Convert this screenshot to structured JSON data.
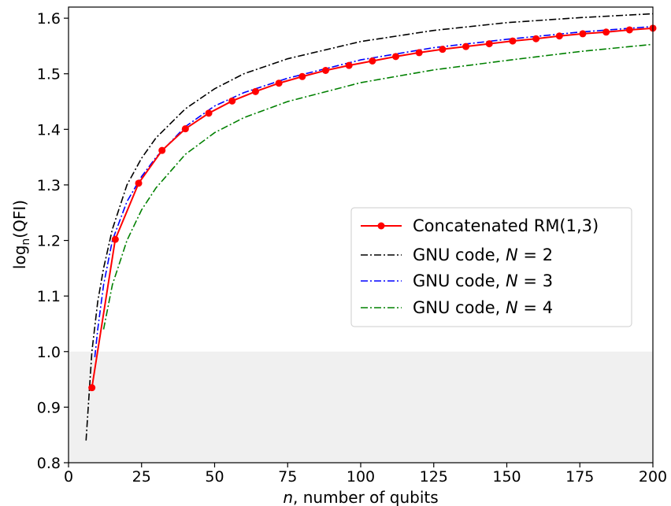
{
  "chart_data": {
    "type": "line",
    "title": "",
    "xlabel": {
      "italic": "n",
      "rest": ", number of qubits"
    },
    "ylabel": {
      "base": "log",
      "sub": "n",
      "rest": "(QFI)"
    },
    "xlim": [
      0,
      200
    ],
    "ylim": [
      0.8,
      1.62
    ],
    "x_ticks": [
      0,
      25,
      50,
      75,
      100,
      125,
      150,
      175,
      200
    ],
    "y_ticks": [
      0.8,
      0.9,
      1.0,
      1.1,
      1.2,
      1.3,
      1.4,
      1.5,
      1.6
    ],
    "x_tick_labels": [
      "0",
      "25",
      "50",
      "75",
      "100",
      "125",
      "150",
      "175",
      "200"
    ],
    "y_tick_labels": [
      "0.8",
      "0.9",
      "1.0",
      "1.1",
      "1.2",
      "1.3",
      "1.4",
      "1.5",
      "1.6"
    ],
    "shaded_region": {
      "y_from": 0.8,
      "y_to": 1.0,
      "color": "#f0f0f0"
    },
    "grid": false,
    "legend_position": "center-right",
    "series": [
      {
        "name": "Concatenated RM(1,3)",
        "legend": {
          "text": "Concatenated RM(1,3)"
        },
        "color": "#ff0000",
        "style": "solid-marker",
        "x": [
          8,
          16,
          24,
          32,
          40,
          48,
          56,
          64,
          72,
          80,
          88,
          96,
          104,
          112,
          120,
          128,
          136,
          144,
          152,
          160,
          168,
          176,
          184,
          192,
          200
        ],
        "y": [
          0.935,
          1.202,
          1.303,
          1.362,
          1.401,
          1.429,
          1.451,
          1.468,
          1.483,
          1.495,
          1.506,
          1.515,
          1.523,
          1.531,
          1.538,
          1.544,
          1.549,
          1.554,
          1.559,
          1.563,
          1.568,
          1.572,
          1.575,
          1.579,
          1.582
        ]
      },
      {
        "name": "GNU code, N = 2",
        "legend": {
          "prefix": "GNU code, ",
          "var": "N",
          "suffix": " = 2"
        },
        "color": "#000000",
        "style": "dashdot",
        "x": [
          6,
          8,
          10,
          12,
          15,
          20,
          25,
          30,
          40,
          50,
          60,
          75,
          100,
          125,
          150,
          175,
          200
        ],
        "y": [
          0.84,
          1.0,
          1.09,
          1.15,
          1.22,
          1.3,
          1.348,
          1.385,
          1.437,
          1.473,
          1.5,
          1.527,
          1.558,
          1.578,
          1.592,
          1.601,
          1.608
        ]
      },
      {
        "name": "GNU code, N = 3",
        "legend": {
          "prefix": "GNU code, ",
          "var": "N",
          "suffix": " = 3"
        },
        "color": "#0000ff",
        "style": "dashdot",
        "x": [
          9,
          10,
          12,
          15,
          20,
          25,
          30,
          40,
          50,
          60,
          75,
          100,
          125,
          150,
          175,
          200
        ],
        "y": [
          0.99,
          1.04,
          1.12,
          1.2,
          1.27,
          1.315,
          1.35,
          1.405,
          1.442,
          1.466,
          1.492,
          1.525,
          1.547,
          1.562,
          1.575,
          1.585
        ]
      },
      {
        "name": "GNU code, N = 4",
        "legend": {
          "prefix": "GNU code, ",
          "var": "N",
          "suffix": " = 4"
        },
        "color": "#008000",
        "style": "dashdot",
        "x": [
          12,
          15,
          20,
          25,
          30,
          40,
          50,
          60,
          75,
          100,
          125,
          150,
          175,
          200
        ],
        "y": [
          1.04,
          1.12,
          1.2,
          1.255,
          1.295,
          1.355,
          1.394,
          1.421,
          1.45,
          1.484,
          1.507,
          1.524,
          1.54,
          1.553
        ]
      }
    ]
  }
}
